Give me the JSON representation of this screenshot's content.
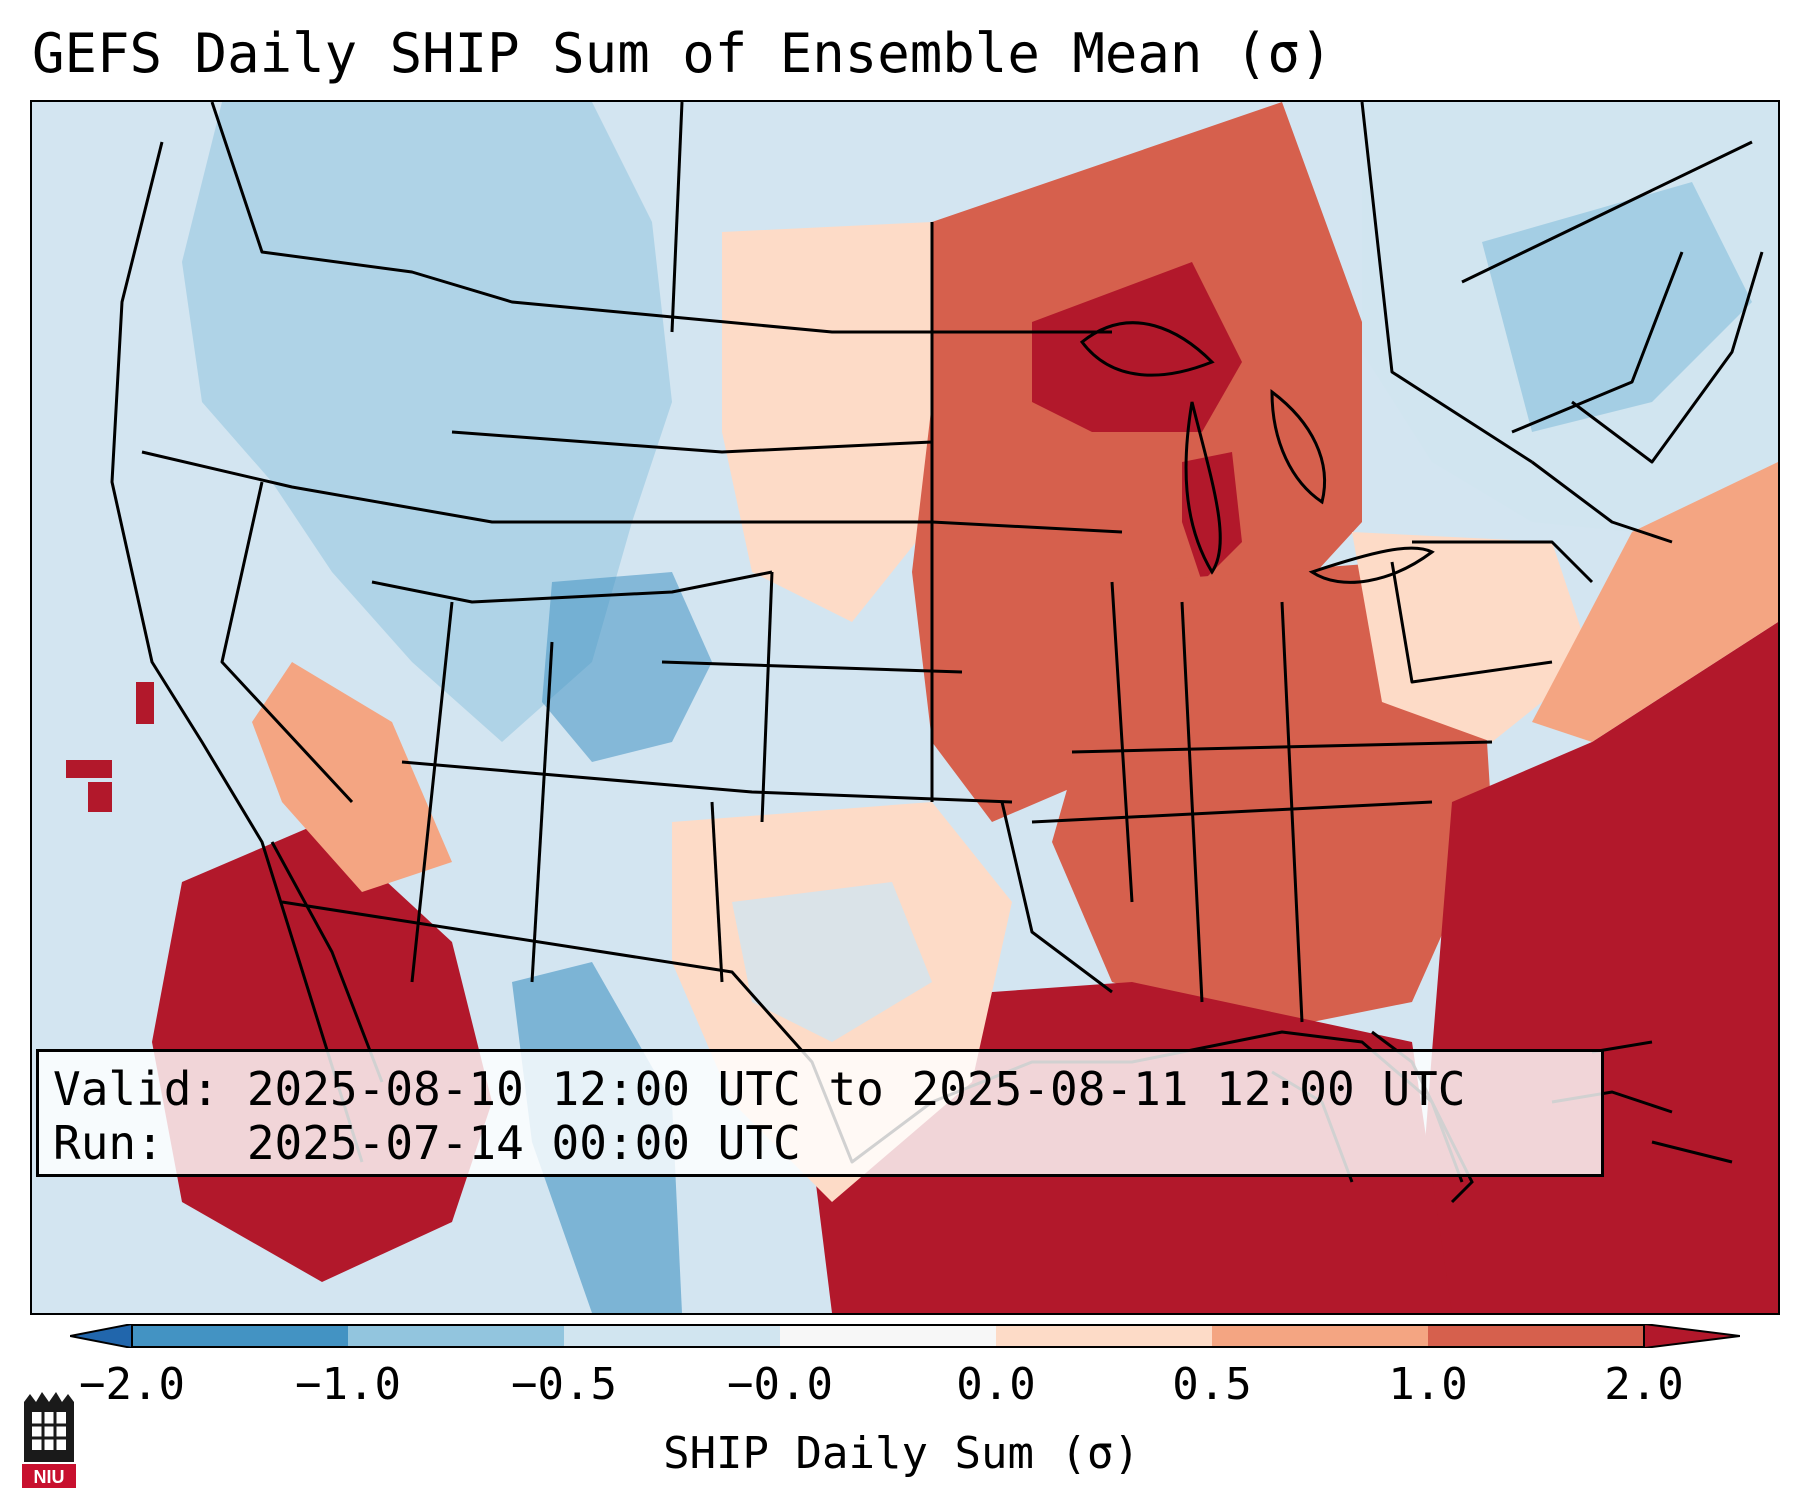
{
  "title": "GEFS Daily SHIP Sum of Ensemble Mean (σ)",
  "info": {
    "valid": "Valid: 2025-08-10 12:00 UTC to 2025-08-11 12:00 UTC",
    "run": "Run:   2025-07-14 00:00 UTC"
  },
  "colorbar": {
    "label": "SHIP Daily Sum (σ)",
    "ticks": [
      "−2.0",
      "−1.0",
      "−0.5",
      "−0.0",
      "0.0",
      "0.5",
      "1.0",
      "2.0"
    ],
    "colors": [
      "#4393c3",
      "#92c5de",
      "#d1e5f0",
      "#f7f7f7",
      "#fddbc7",
      "#f4a582",
      "#d6604d",
      "#b2182b"
    ],
    "extend": "both"
  },
  "logo": {
    "name": "niu-logo",
    "text": "NIU"
  },
  "map": {
    "region": "Contiguous United States, southern Canada, northern Mexico",
    "field": "SHIP daily sum anomaly (σ)"
  }
}
